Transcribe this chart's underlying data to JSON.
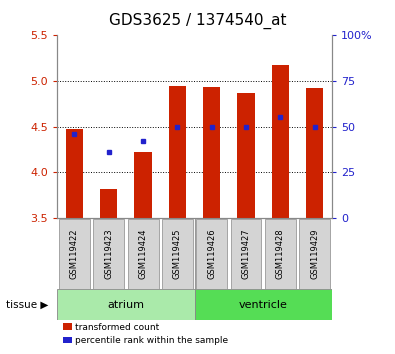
{
  "title": "GDS3625 / 1374540_at",
  "samples": [
    "GSM119422",
    "GSM119423",
    "GSM119424",
    "GSM119425",
    "GSM119426",
    "GSM119427",
    "GSM119428",
    "GSM119429"
  ],
  "red_values": [
    4.47,
    3.82,
    4.22,
    4.95,
    4.93,
    4.87,
    5.18,
    4.92
  ],
  "blue_values": [
    4.42,
    4.22,
    4.34,
    4.5,
    4.5,
    4.5,
    4.6,
    4.5
  ],
  "ymin": 3.5,
  "ymax": 5.5,
  "yticks": [
    3.5,
    4.0,
    4.5,
    5.0,
    5.5
  ],
  "right_yticks": [
    0,
    25,
    50,
    75,
    100
  ],
  "right_ytick_labels": [
    "0",
    "25",
    "50",
    "75",
    "100%"
  ],
  "atrium_color": "#aaeaaa",
  "ventricle_color": "#55dd55",
  "tissue_label": "tissue",
  "atrium_label": "atrium",
  "ventricle_label": "ventricle",
  "bar_color": "#cc2200",
  "dot_color": "#2222cc",
  "background_color": "#ffffff",
  "title_fontsize": 11,
  "tick_fontsize": 8,
  "bar_width": 0.5,
  "grid_dotted_ticks": [
    4.0,
    4.5,
    5.0
  ]
}
